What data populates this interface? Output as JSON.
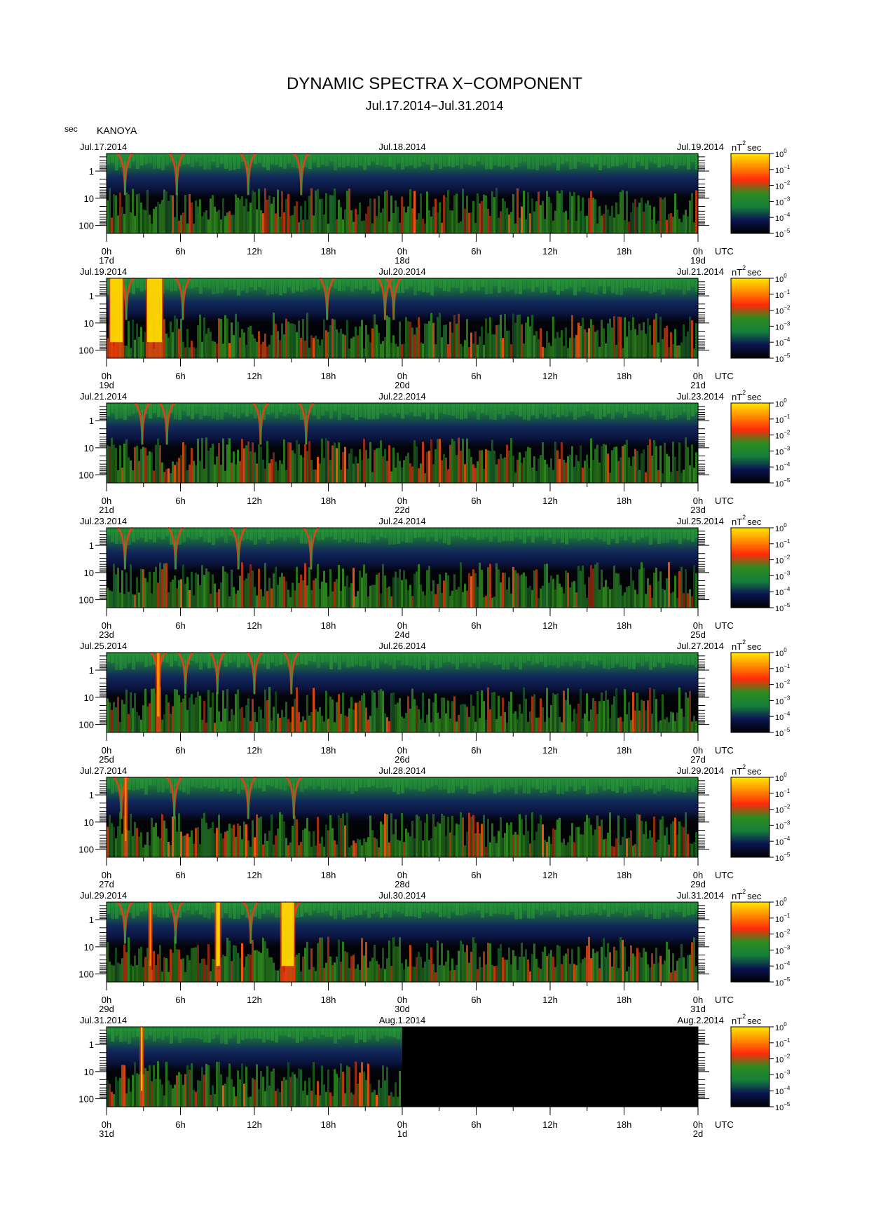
{
  "title": "DYNAMIC SPECTRA X−COMPONENT",
  "subtitle": "Jul.17.2014−Jul.31.2014",
  "y_unit_label": "sec",
  "station": "KANOYA",
  "colorbar_unit_base": "nT",
  "colorbar_unit_sup": "2",
  "colorbar_unit_tail": "sec",
  "colorbar_tick_base": "10",
  "colorbar_tick_exps": [
    "0",
    "−1",
    "−2",
    "−3",
    "−4",
    "−5"
  ],
  "colormap": [
    "#000000",
    "#0a1450",
    "#15803a",
    "#2e8b1f",
    "#ff2a0a",
    "#ff8c00",
    "#ffe600"
  ],
  "chart_data": {
    "type": "heatmap",
    "x_axis": {
      "tick_labels": [
        "0h",
        "6h",
        "12h",
        "18h",
        "0h",
        "6h",
        "12h",
        "18h",
        "0h"
      ],
      "unit_label": "UTC"
    },
    "y_axis": {
      "label": "sec",
      "scale": "log",
      "tick_labels": [
        "1",
        "10",
        "100"
      ],
      "inverted": true
    },
    "colorscale": {
      "label": "nT^2 sec",
      "scale": "log",
      "range": [
        1e-05,
        1
      ]
    },
    "panels": [
      {
        "left_date": "Jul.17.2014",
        "mid_date": "Jul.18.2014",
        "right_date": "Jul.19.2014",
        "day_labels": [
          "17d",
          "18d",
          "19d"
        ],
        "data_fraction": 1.0,
        "vertical_streaks_hours": [
          1.5,
          5.7,
          11.5,
          15.8
        ],
        "bursts": []
      },
      {
        "left_date": "Jul.19.2014",
        "mid_date": "Jul.20.2014",
        "right_date": "Jul.21.2014",
        "day_labels": [
          "19d",
          "20d",
          "21d"
        ],
        "data_fraction": 1.0,
        "vertical_streaks_hours": [
          1.6,
          6.2,
          17.9,
          22.6,
          23.3
        ],
        "bursts": [
          {
            "start_h": 0.3,
            "end_h": 1.3,
            "peak": "yellow"
          },
          {
            "start_h": 3.3,
            "end_h": 4.5,
            "peak": "yellow"
          }
        ]
      },
      {
        "left_date": "Jul.21.2014",
        "mid_date": "Jul.22.2014",
        "right_date": "Jul.23.2014",
        "day_labels": [
          "21d",
          "22d",
          "23d"
        ],
        "data_fraction": 1.0,
        "vertical_streaks_hours": [
          2.9,
          4.9,
          12.5,
          16.2
        ],
        "bursts": []
      },
      {
        "left_date": "Jul.23.2014",
        "mid_date": "Jul.24.2014",
        "right_date": "Jul.25.2014",
        "day_labels": [
          "23d",
          "24d",
          "25d"
        ],
        "data_fraction": 1.0,
        "vertical_streaks_hours": [
          1.5,
          5.6,
          10.7,
          16.6
        ],
        "bursts": []
      },
      {
        "left_date": "Jul.25.2014",
        "mid_date": "Jul.26.2014",
        "right_date": "Jul.27.2014",
        "day_labels": [
          "25d",
          "26d",
          "27d"
        ],
        "data_fraction": 1.0,
        "vertical_streaks_hours": [
          4.2,
          6.4,
          9.0,
          12.0,
          15.0
        ],
        "bursts": [
          {
            "start_h": 4.1,
            "end_h": 4.3,
            "peak": "orange"
          }
        ]
      },
      {
        "left_date": "Jul.27.2014",
        "mid_date": "Jul.28.2014",
        "right_date": "Jul.29.2014",
        "day_labels": [
          "27d",
          "28d",
          "29d"
        ],
        "data_fraction": 1.0,
        "vertical_streaks_hours": [
          1.2,
          5.5,
          11.5,
          15.2
        ],
        "bursts": [
          {
            "start_h": 1.5,
            "end_h": 1.6,
            "peak": "orange"
          }
        ]
      },
      {
        "left_date": "Jul.29.2014",
        "mid_date": "Jul.30.2014",
        "right_date": "Jul.31.2014",
        "day_labels": [
          "29d",
          "30d",
          "31d"
        ],
        "data_fraction": 1.0,
        "vertical_streaks_hours": [
          1.5,
          5.6,
          11.7,
          15.1
        ],
        "bursts": [
          {
            "start_h": 3.5,
            "end_h": 3.6,
            "peak": "orange"
          },
          {
            "start_h": 8.9,
            "end_h": 9.2,
            "peak": "yellow"
          },
          {
            "start_h": 14.2,
            "end_h": 15.2,
            "peak": "yellow"
          }
        ]
      },
      {
        "left_date": "Jul.31.2014",
        "mid_date": "Aug.1.2014",
        "right_date": "Aug.2.2014",
        "day_labels": [
          "31d",
          "1d",
          "2d"
        ],
        "data_fraction": 0.5,
        "vertical_streaks_hours": [],
        "bursts": [
          {
            "start_h": 2.8,
            "end_h": 2.9,
            "peak": "yellow"
          }
        ]
      }
    ]
  }
}
